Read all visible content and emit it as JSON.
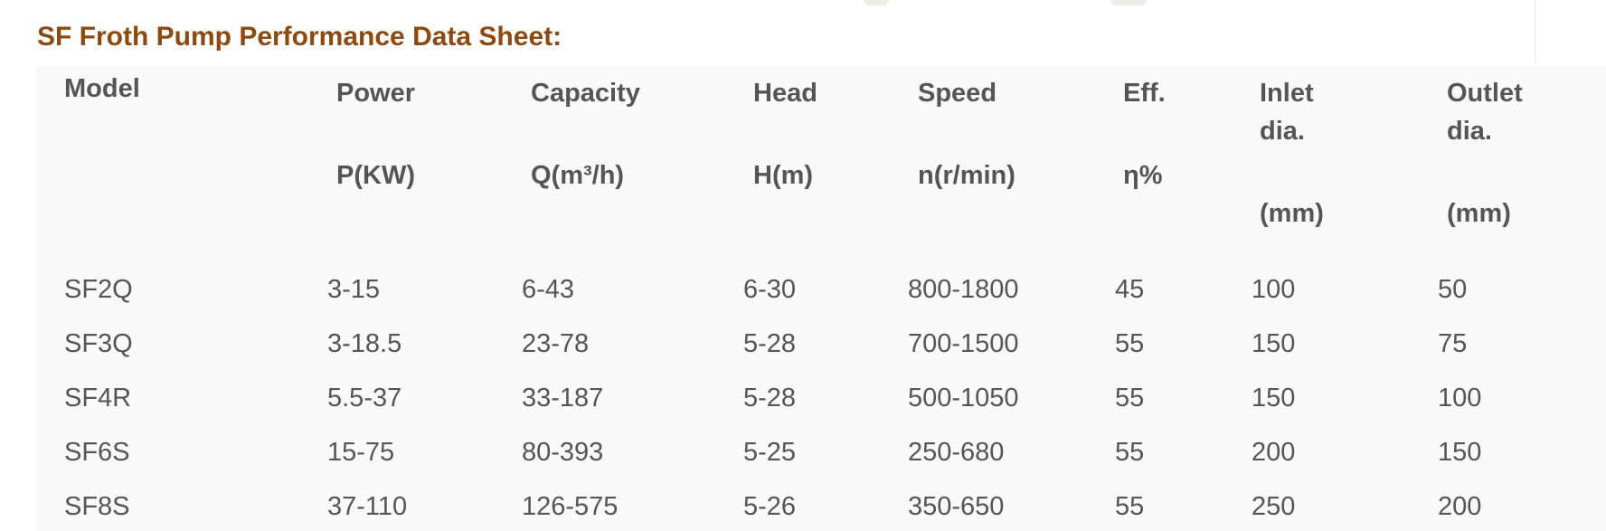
{
  "title": "SF Froth Pump Performance Data Sheet:",
  "colors": {
    "title": "#8b4a12",
    "text": "#555555",
    "table_background": "#f9f9f9"
  },
  "table": {
    "headers": [
      {
        "name": "Model",
        "unit": ""
      },
      {
        "name": "Power",
        "unit": "P(KW)"
      },
      {
        "name": "Capacity",
        "unit": "Q(m³/h)"
      },
      {
        "name": "Head",
        "unit": "H(m)"
      },
      {
        "name": "Speed",
        "unit": "n(r/min)"
      },
      {
        "name": "Eff.",
        "unit": "η%"
      },
      {
        "name": "Inlet",
        "name2": "dia.",
        "unit": "(mm)"
      },
      {
        "name": "Outlet",
        "name2": "dia.",
        "unit": "(mm)"
      }
    ],
    "rows": [
      [
        "SF2Q",
        "3-15",
        "6-43",
        "6-30",
        "800-1800",
        "45",
        "100",
        "50"
      ],
      [
        "SF3Q",
        "3-18.5",
        "23-78",
        "5-28",
        "700-1500",
        "55",
        "150",
        "75"
      ],
      [
        "SF4R",
        "5.5-37",
        "33-187",
        "5-28",
        "500-1050",
        "55",
        "150",
        "100"
      ],
      [
        "SF6S",
        "15-75",
        "80-393",
        "5-25",
        "250-680",
        "55",
        "200",
        "150"
      ],
      [
        "SF8S",
        "37-110",
        "126-575",
        "5-26",
        "350-650",
        "55",
        "250",
        "200"
      ]
    ]
  }
}
